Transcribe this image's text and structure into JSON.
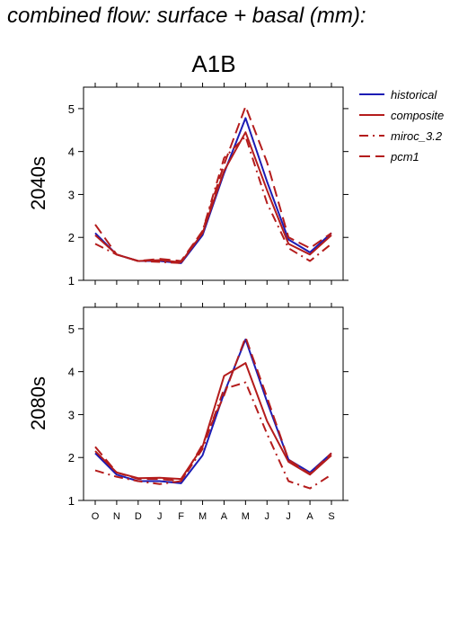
{
  "figure": {
    "title": "combined flow: surface + basal (mm):",
    "scenario": "A1B"
  },
  "colors": {
    "historical": "#1c1cb4",
    "composite": "#b41c1c",
    "miroc_3.2": "#b41c1c",
    "pcm1": "#b41c1c"
  },
  "legend": [
    {
      "name": "historical",
      "dash": "solid"
    },
    {
      "name": "composite",
      "dash": "solid"
    },
    {
      "name": "miroc_3.2",
      "dash": "dashdot"
    },
    {
      "name": "pcm1",
      "dash": "dash"
    }
  ],
  "chart_data": [
    {
      "type": "line",
      "panel_label": "2040s",
      "categories": [
        "O",
        "N",
        "D",
        "J",
        "F",
        "M",
        "A",
        "M",
        "J",
        "J",
        "A",
        "S"
      ],
      "ylim": [
        1,
        5.5
      ],
      "yticks": [
        1,
        2,
        3,
        4,
        5
      ],
      "series": [
        {
          "name": "historical",
          "values": [
            2.1,
            1.6,
            1.45,
            1.45,
            1.4,
            2.05,
            3.5,
            4.78,
            3.3,
            1.95,
            1.65,
            2.1
          ]
        },
        {
          "name": "composite",
          "values": [
            2.05,
            1.6,
            1.45,
            1.47,
            1.42,
            2.1,
            3.55,
            4.45,
            3.1,
            1.85,
            1.6,
            2.05
          ]
        },
        {
          "name": "miroc_3.2",
          "values": [
            1.85,
            1.6,
            1.45,
            1.43,
            1.4,
            2.15,
            3.85,
            4.35,
            2.8,
            1.75,
            1.45,
            1.85
          ]
        },
        {
          "name": "pcm1",
          "values": [
            2.3,
            1.6,
            1.45,
            1.5,
            1.45,
            2.15,
            3.7,
            5.05,
            3.75,
            2.0,
            1.75,
            2.1
          ]
        }
      ]
    },
    {
      "type": "line",
      "panel_label": "2080s",
      "categories": [
        "O",
        "N",
        "D",
        "J",
        "F",
        "M",
        "A",
        "M",
        "J",
        "J",
        "A",
        "S"
      ],
      "ylim": [
        1,
        5.5
      ],
      "yticks": [
        1,
        2,
        3,
        4,
        5
      ],
      "series": [
        {
          "name": "historical",
          "values": [
            2.1,
            1.6,
            1.45,
            1.45,
            1.4,
            2.05,
            3.5,
            4.75,
            3.3,
            1.95,
            1.65,
            2.1
          ]
        },
        {
          "name": "composite",
          "values": [
            2.15,
            1.65,
            1.52,
            1.53,
            1.5,
            2.25,
            3.9,
            4.2,
            2.85,
            1.9,
            1.6,
            2.05
          ]
        },
        {
          "name": "miroc_3.2",
          "values": [
            1.7,
            1.55,
            1.45,
            1.38,
            1.45,
            2.2,
            3.6,
            3.75,
            2.55,
            1.45,
            1.28,
            1.6
          ]
        },
        {
          "name": "pcm1",
          "values": [
            2.25,
            1.65,
            1.5,
            1.5,
            1.45,
            2.3,
            3.45,
            4.8,
            3.4,
            1.95,
            1.62,
            2.1
          ]
        }
      ]
    }
  ]
}
